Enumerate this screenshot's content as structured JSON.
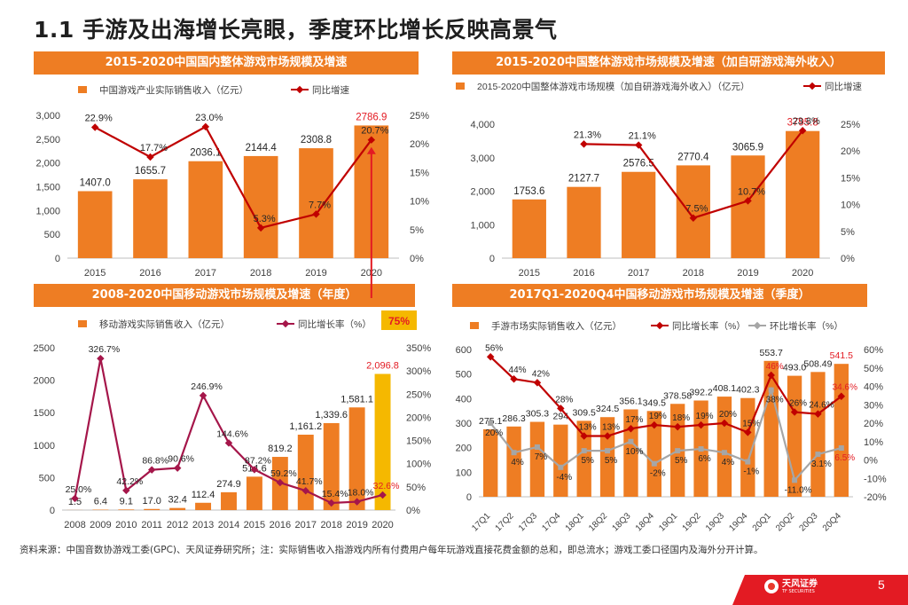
{
  "page_title": "1.1 手游及出海增长亮眼，季度环比增长反映高景气",
  "footnote": "资料来源：中国音数协游戏工委(GPC)、天风证券研究所；注：实际销售收入指游戏内所有付费用户每年玩游戏直接花费金额的总和，即总流水；游戏工委口径国内及海外分开计算。",
  "page_number": "5",
  "brand": {
    "name": "天风证券",
    "sub": "TF SECURITIES"
  },
  "colors": {
    "bar": "#ee7d23",
    "bar_highlight": "#f5b800",
    "line_red": "#c00000",
    "line_maroon": "#a5164a",
    "line_gray": "#a6a6a6",
    "banner": "#ee7d23",
    "accent_red": "#e31b23"
  },
  "chart_data": [
    {
      "id": "c1",
      "banner": "2015-2020中国国内整体游戏市场规模及增速",
      "type": "bar",
      "categories": [
        "2015",
        "2016",
        "2017",
        "2018",
        "2019",
        "2020"
      ],
      "series": [
        {
          "name": "中国游戏产业实际销售收入（亿元）",
          "kind": "bar",
          "axis": "left",
          "values": [
            1407.0,
            1655.7,
            2036.1,
            2144.4,
            2308.8,
            2786.9
          ],
          "labels": [
            "1407.0",
            "1655.7",
            "2036.1",
            "2144.4",
            "2308.8",
            "2786.9"
          ]
        },
        {
          "name": "同比增速",
          "kind": "line",
          "axis": "right",
          "values": [
            22.9,
            17.7,
            23.0,
            5.3,
            7.7,
            20.7
          ],
          "labels": [
            "22.9%",
            "17.7%",
            "23.0%",
            "5.3%",
            "7.7%",
            "20.7%"
          ]
        }
      ],
      "ylim": [
        0,
        3000
      ],
      "yticks": [
        "0",
        "500",
        "1,000",
        "1,500",
        "2,000",
        "2,500",
        "3,000"
      ],
      "y2lim": [
        0,
        25
      ],
      "y2ticks": [
        "0%",
        "5%",
        "10%",
        "15%",
        "20%",
        "25%"
      ]
    },
    {
      "id": "c2",
      "banner": "2015-2020中国整体游戏市场规模及增速（加自研游戏海外收入）",
      "type": "bar",
      "categories": [
        "2015",
        "2016",
        "2017",
        "2018",
        "2019",
        "2020"
      ],
      "series": [
        {
          "name": "2015-2020中国整体游戏市场规模（加自研游戏海外收入）（亿元）",
          "kind": "bar",
          "axis": "left",
          "values": [
            1753.6,
            2127.7,
            2576.5,
            2770.4,
            3065.9,
            3795.8
          ],
          "labels": [
            "1753.6",
            "2127.7",
            "2576.5",
            "2770.4",
            "3065.9",
            "3795.8"
          ]
        },
        {
          "name": "同比增速",
          "kind": "line",
          "axis": "right",
          "values": [
            null,
            21.3,
            21.1,
            7.5,
            10.7,
            23.8
          ],
          "labels": [
            "",
            "21.3%",
            "21.1%",
            "7.5%",
            "10.7%",
            "23.8%"
          ]
        }
      ],
      "ylim": [
        0,
        4000
      ],
      "yticks": [
        "0",
        "1,000",
        "2,000",
        "3,000",
        "4,000"
      ],
      "y2lim": [
        0,
        25
      ],
      "y2ticks": [
        "0%",
        "5%",
        "10%",
        "15%",
        "20%",
        "25%"
      ]
    },
    {
      "id": "c3",
      "banner": "2008-2020中国移动游戏市场规模及增速（年度）",
      "type": "bar",
      "categories": [
        "2008",
        "2009",
        "2010",
        "2011",
        "2012",
        "2013",
        "2014",
        "2015",
        "2016",
        "2017",
        "2018",
        "2019",
        "2020"
      ],
      "series": [
        {
          "name": "移动游戏实际销售收入（亿元）",
          "kind": "bar",
          "axis": "left",
          "values": [
            1.5,
            6.4,
            9.1,
            17.0,
            32.4,
            112.4,
            274.9,
            514.6,
            819.2,
            1161.2,
            1339.6,
            1581.1,
            2096.8
          ],
          "labels": [
            "1.5",
            "6.4",
            "9.1",
            "17.0",
            "32.4",
            "112.4",
            "274.9",
            "514.6",
            "819.2",
            "1,161.2",
            "1,339.6",
            "1,581.1",
            "2,096.8"
          ]
        },
        {
          "name": "同比增长率（%）",
          "kind": "line",
          "axis": "right",
          "values": [
            25.0,
            326.7,
            42.2,
            86.8,
            90.6,
            246.9,
            144.6,
            87.2,
            59.2,
            41.7,
            15.4,
            18.0,
            32.6
          ],
          "labels": [
            "25.0%",
            "326.7%",
            "42.2%",
            "86.8%",
            "90.6%",
            "246.9%",
            "144.6%",
            "87.2%",
            "59.2%",
            "41.7%",
            "15.4%",
            "18.0%",
            "32.6%"
          ]
        }
      ],
      "ylim": [
        0,
        2500
      ],
      "yticks": [
        "0",
        "500",
        "1000",
        "1500",
        "2000",
        "2500"
      ],
      "y2lim": [
        0,
        350
      ],
      "y2ticks": [
        "0%",
        "50%",
        "100%",
        "150%",
        "200%",
        "250%",
        "300%",
        "350%"
      ],
      "annotation": "75%"
    },
    {
      "id": "c4",
      "banner": "2017Q1-2020Q4中国移动游戏市场规模及增速（季度）",
      "type": "bar",
      "categories": [
        "17Q1",
        "17Q2",
        "17Q3",
        "17Q4",
        "18Q1",
        "18Q2",
        "18Q3",
        "18Q4",
        "19Q1",
        "19Q2",
        "19Q3",
        "19Q4",
        "20Q1",
        "20Q2",
        "20Q3",
        "20Q4"
      ],
      "series": [
        {
          "name": "手游市场实际销售收入（亿元）",
          "kind": "bar",
          "axis": "left",
          "values": [
            275.1,
            286.3,
            305.3,
            294.0,
            309.5,
            324.5,
            356.1,
            349.5,
            378.58,
            392.2,
            408.1,
            402.3,
            553.7,
            493.0,
            508.49,
            541.5
          ],
          "labels": [
            "275.1",
            "286.3",
            "305.3",
            "294",
            "309.5",
            "324.5",
            "356.1",
            "349.5",
            "378.58",
            "392.2",
            "408.1",
            "402.3",
            "553.7",
            "493.0",
            "508.49",
            "541.5"
          ]
        },
        {
          "name": "同比增长率（%）",
          "kind": "line",
          "axis": "right",
          "values": [
            56,
            44,
            42,
            28,
            13,
            13,
            17,
            19,
            18,
            19,
            20,
            15,
            46,
            26,
            25,
            34.6
          ],
          "labels": [
            "56%",
            "44%",
            "42%",
            "28%",
            "13%",
            "13%",
            "17%",
            "19%",
            "18%",
            "19%",
            "20%",
            "15%",
            "46%",
            "26%",
            "24.6%",
            "34.6%"
          ]
        },
        {
          "name": "环比增长率（%）",
          "kind": "line",
          "axis": "right",
          "values": [
            20,
            4,
            7,
            -4,
            5,
            5,
            10,
            -2,
            5,
            6,
            4,
            -1,
            38,
            -11,
            3.1,
            6.5
          ],
          "labels": [
            "20%",
            "4%",
            "7%",
            "-4%",
            "5%",
            "5%",
            "10%",
            "-2%",
            "5%",
            "6%",
            "4%",
            "-1%",
            "38%",
            "-11.0%",
            "3.1%",
            "6.5%"
          ]
        }
      ],
      "ylim": [
        0,
        600
      ],
      "yticks": [
        "0",
        "100",
        "200",
        "300",
        "400",
        "500",
        "600"
      ],
      "y2lim": [
        -20,
        60
      ],
      "y2ticks": [
        "-20%",
        "-10%",
        "0%",
        "10%",
        "20%",
        "30%",
        "40%",
        "50%",
        "60%"
      ]
    }
  ]
}
